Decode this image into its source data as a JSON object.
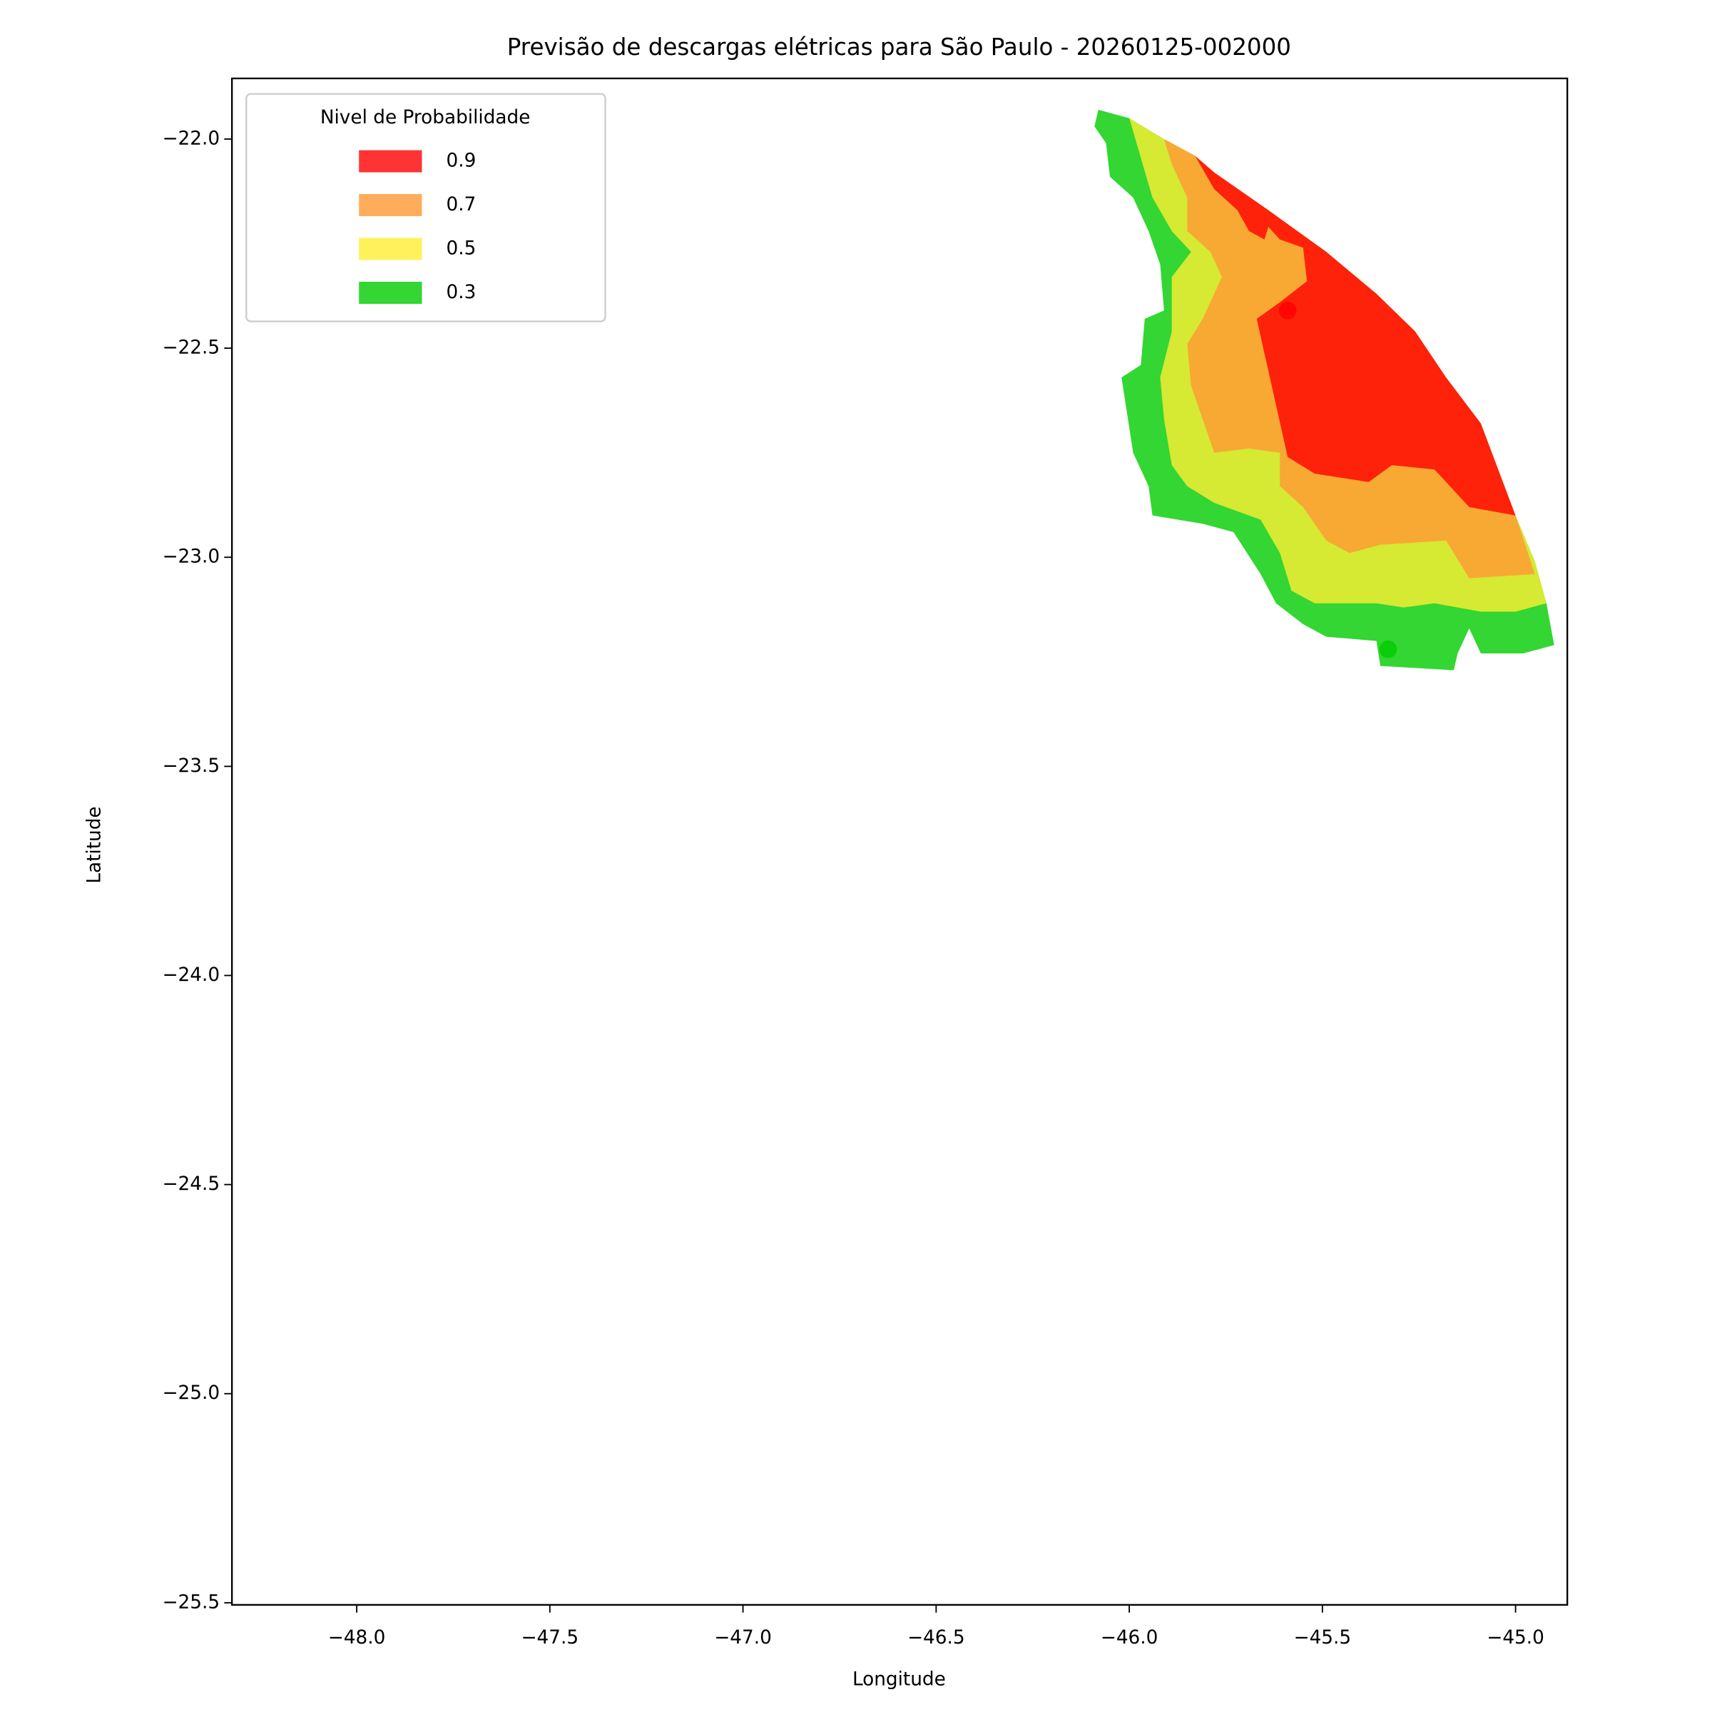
{
  "chart_data": {
    "type": "contour",
    "title": "Previsão de descargas elétricas para São Paulo - 20260125-002000",
    "xlabel": "Longitude",
    "ylabel": "Latitude",
    "xlim": [
      -48.323,
      -44.866
    ],
    "ylim": [
      -25.505,
      -21.855
    ],
    "xticks": [
      {
        "value": -48.0,
        "label": "−48.0"
      },
      {
        "value": -47.5,
        "label": "−47.5"
      },
      {
        "value": -47.0,
        "label": "−47.0"
      },
      {
        "value": -46.5,
        "label": "−46.5"
      },
      {
        "value": -46.0,
        "label": "−46.0"
      },
      {
        "value": -45.5,
        "label": "−45.5"
      },
      {
        "value": -45.0,
        "label": "−45.0"
      }
    ],
    "yticks": [
      {
        "value": -22.0,
        "label": "−22.0"
      },
      {
        "value": -22.5,
        "label": "−22.5"
      },
      {
        "value": -23.0,
        "label": "−23.0"
      },
      {
        "value": -23.5,
        "label": "−23.5"
      },
      {
        "value": -24.0,
        "label": "−24.0"
      },
      {
        "value": -24.5,
        "label": "−24.5"
      },
      {
        "value": -25.0,
        "label": "−25.0"
      },
      {
        "value": -25.5,
        "label": "−25.5"
      }
    ],
    "legend_title": "Nivel de Probabilidade",
    "legend_position": "upper left",
    "series": [
      {
        "name": "0.9",
        "color": "#ff0000",
        "lon": [
          -45.83,
          -45.78,
          -45.64,
          -45.49,
          -45.36,
          -45.26,
          -45.18,
          -45.09,
          -45.0,
          -45.12,
          -45.21,
          -45.32,
          -45.38,
          -45.52,
          -45.59,
          -45.67,
          -45.61,
          -45.54,
          -45.55,
          -45.61,
          -45.64,
          -45.65,
          -45.69,
          -45.72,
          -45.78
        ],
        "lat": [
          -22.04,
          -22.08,
          -22.17,
          -22.27,
          -22.37,
          -22.46,
          -22.57,
          -22.68,
          -22.9,
          -22.88,
          -22.79,
          -22.78,
          -22.82,
          -22.8,
          -22.76,
          -22.43,
          -22.39,
          -22.34,
          -22.26,
          -22.24,
          -22.21,
          -22.24,
          -22.22,
          -22.17,
          -22.12
        ]
      },
      {
        "name": "0.7",
        "color": "#ff9933",
        "lon": [
          -45.91,
          -45.83,
          -45.78,
          -45.64,
          -45.49,
          -45.36,
          -45.26,
          -45.18,
          -45.09,
          -45.0,
          -44.95,
          -45.12,
          -45.18,
          -45.35,
          -45.43,
          -45.49,
          -45.55,
          -45.61,
          -45.61,
          -45.69,
          -45.78,
          -45.81,
          -45.84,
          -45.85,
          -45.81,
          -45.76,
          -45.79,
          -45.85,
          -45.85,
          -45.89
        ],
        "lat": [
          -22.0,
          -22.04,
          -22.08,
          -22.17,
          -22.27,
          -22.37,
          -22.46,
          -22.57,
          -22.68,
          -22.9,
          -23.04,
          -23.05,
          -22.96,
          -22.97,
          -22.99,
          -22.96,
          -22.88,
          -22.83,
          -22.75,
          -22.74,
          -22.75,
          -22.67,
          -22.59,
          -22.49,
          -22.43,
          -22.33,
          -22.27,
          -22.22,
          -22.14,
          -22.06
        ]
      },
      {
        "name": "0.5",
        "color": "#ffee33",
        "lon": [
          -46.0,
          -45.91,
          -45.83,
          -45.78,
          -45.64,
          -45.49,
          -45.36,
          -45.26,
          -45.18,
          -45.09,
          -45.0,
          -44.95,
          -44.92,
          -45.0,
          -45.09,
          -45.21,
          -45.29,
          -45.36,
          -45.52,
          -45.58,
          -45.61,
          -45.66,
          -45.78,
          -45.85,
          -45.89,
          -45.91,
          -45.92,
          -45.89,
          -45.89,
          -45.84,
          -45.89,
          -45.94
        ],
        "lat": [
          -21.95,
          -22.0,
          -22.04,
          -22.08,
          -22.17,
          -22.27,
          -22.37,
          -22.46,
          -22.57,
          -22.68,
          -22.9,
          -23.01,
          -23.11,
          -23.13,
          -23.13,
          -23.11,
          -23.12,
          -23.11,
          -23.11,
          -23.08,
          -22.99,
          -22.91,
          -22.87,
          -22.83,
          -22.78,
          -22.67,
          -22.57,
          -22.46,
          -22.33,
          -22.27,
          -22.22,
          -22.14
        ]
      },
      {
        "name": "0.3",
        "color": "#00cc00",
        "lon": [
          -46.08,
          -46.0,
          -45.91,
          -45.83,
          -45.78,
          -45.64,
          -45.49,
          -45.36,
          -45.26,
          -45.18,
          -45.09,
          -45.0,
          -44.95,
          -44.92,
          -44.9,
          -44.98,
          -45.09,
          -45.12,
          -45.15,
          -45.16,
          -45.35,
          -45.36,
          -45.49,
          -45.55,
          -45.62,
          -45.66,
          -45.73,
          -45.81,
          -45.94,
          -45.95,
          -45.99,
          -46.02,
          -45.97,
          -45.96,
          -45.91,
          -45.92,
          -45.95,
          -45.99,
          -46.05,
          -46.06,
          -46.09
        ],
        "lat": [
          -21.93,
          -21.95,
          -22.0,
          -22.04,
          -22.08,
          -22.17,
          -22.27,
          -22.37,
          -22.46,
          -22.57,
          -22.68,
          -22.9,
          -23.01,
          -23.11,
          -23.21,
          -23.23,
          -23.23,
          -23.17,
          -23.23,
          -23.27,
          -23.26,
          -23.2,
          -23.19,
          -23.16,
          -23.11,
          -23.04,
          -22.94,
          -22.92,
          -22.9,
          -22.83,
          -22.75,
          -22.57,
          -22.54,
          -22.43,
          -22.41,
          -22.3,
          -22.22,
          -22.14,
          -22.09,
          -22.01,
          -21.97
        ]
      }
    ],
    "points": [
      {
        "x": -45.59,
        "y": -22.41,
        "color": "#ff0000"
      },
      {
        "x": -45.33,
        "y": -23.22,
        "color": "#00cc00"
      }
    ]
  }
}
